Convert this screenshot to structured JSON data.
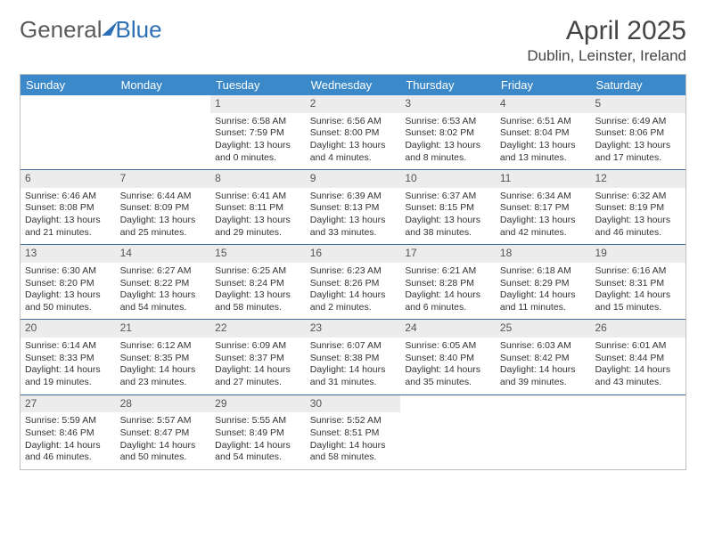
{
  "brand": {
    "part1": "General",
    "part2": "Blue"
  },
  "title": "April 2025",
  "location": "Dublin, Leinster, Ireland",
  "colors": {
    "header_bg": "#3b89c9",
    "header_text": "#ffffff",
    "row_divider": "#3b6a95",
    "daynum_bg": "#ececec",
    "border": "#bfbfbf",
    "text": "#333333",
    "brand_blue": "#2d6fb5"
  },
  "day_labels": [
    "Sunday",
    "Monday",
    "Tuesday",
    "Wednesday",
    "Thursday",
    "Friday",
    "Saturday"
  ],
  "weeks": [
    [
      {
        "empty": true
      },
      {
        "empty": true
      },
      {
        "day": "1",
        "sunrise": "Sunrise: 6:58 AM",
        "sunset": "Sunset: 7:59 PM",
        "daylight": "Daylight: 13 hours and 0 minutes."
      },
      {
        "day": "2",
        "sunrise": "Sunrise: 6:56 AM",
        "sunset": "Sunset: 8:00 PM",
        "daylight": "Daylight: 13 hours and 4 minutes."
      },
      {
        "day": "3",
        "sunrise": "Sunrise: 6:53 AM",
        "sunset": "Sunset: 8:02 PM",
        "daylight": "Daylight: 13 hours and 8 minutes."
      },
      {
        "day": "4",
        "sunrise": "Sunrise: 6:51 AM",
        "sunset": "Sunset: 8:04 PM",
        "daylight": "Daylight: 13 hours and 13 minutes."
      },
      {
        "day": "5",
        "sunrise": "Sunrise: 6:49 AM",
        "sunset": "Sunset: 8:06 PM",
        "daylight": "Daylight: 13 hours and 17 minutes."
      }
    ],
    [
      {
        "day": "6",
        "sunrise": "Sunrise: 6:46 AM",
        "sunset": "Sunset: 8:08 PM",
        "daylight": "Daylight: 13 hours and 21 minutes."
      },
      {
        "day": "7",
        "sunrise": "Sunrise: 6:44 AM",
        "sunset": "Sunset: 8:09 PM",
        "daylight": "Daylight: 13 hours and 25 minutes."
      },
      {
        "day": "8",
        "sunrise": "Sunrise: 6:41 AM",
        "sunset": "Sunset: 8:11 PM",
        "daylight": "Daylight: 13 hours and 29 minutes."
      },
      {
        "day": "9",
        "sunrise": "Sunrise: 6:39 AM",
        "sunset": "Sunset: 8:13 PM",
        "daylight": "Daylight: 13 hours and 33 minutes."
      },
      {
        "day": "10",
        "sunrise": "Sunrise: 6:37 AM",
        "sunset": "Sunset: 8:15 PM",
        "daylight": "Daylight: 13 hours and 38 minutes."
      },
      {
        "day": "11",
        "sunrise": "Sunrise: 6:34 AM",
        "sunset": "Sunset: 8:17 PM",
        "daylight": "Daylight: 13 hours and 42 minutes."
      },
      {
        "day": "12",
        "sunrise": "Sunrise: 6:32 AM",
        "sunset": "Sunset: 8:19 PM",
        "daylight": "Daylight: 13 hours and 46 minutes."
      }
    ],
    [
      {
        "day": "13",
        "sunrise": "Sunrise: 6:30 AM",
        "sunset": "Sunset: 8:20 PM",
        "daylight": "Daylight: 13 hours and 50 minutes."
      },
      {
        "day": "14",
        "sunrise": "Sunrise: 6:27 AM",
        "sunset": "Sunset: 8:22 PM",
        "daylight": "Daylight: 13 hours and 54 minutes."
      },
      {
        "day": "15",
        "sunrise": "Sunrise: 6:25 AM",
        "sunset": "Sunset: 8:24 PM",
        "daylight": "Daylight: 13 hours and 58 minutes."
      },
      {
        "day": "16",
        "sunrise": "Sunrise: 6:23 AM",
        "sunset": "Sunset: 8:26 PM",
        "daylight": "Daylight: 14 hours and 2 minutes."
      },
      {
        "day": "17",
        "sunrise": "Sunrise: 6:21 AM",
        "sunset": "Sunset: 8:28 PM",
        "daylight": "Daylight: 14 hours and 6 minutes."
      },
      {
        "day": "18",
        "sunrise": "Sunrise: 6:18 AM",
        "sunset": "Sunset: 8:29 PM",
        "daylight": "Daylight: 14 hours and 11 minutes."
      },
      {
        "day": "19",
        "sunrise": "Sunrise: 6:16 AM",
        "sunset": "Sunset: 8:31 PM",
        "daylight": "Daylight: 14 hours and 15 minutes."
      }
    ],
    [
      {
        "day": "20",
        "sunrise": "Sunrise: 6:14 AM",
        "sunset": "Sunset: 8:33 PM",
        "daylight": "Daylight: 14 hours and 19 minutes."
      },
      {
        "day": "21",
        "sunrise": "Sunrise: 6:12 AM",
        "sunset": "Sunset: 8:35 PM",
        "daylight": "Daylight: 14 hours and 23 minutes."
      },
      {
        "day": "22",
        "sunrise": "Sunrise: 6:09 AM",
        "sunset": "Sunset: 8:37 PM",
        "daylight": "Daylight: 14 hours and 27 minutes."
      },
      {
        "day": "23",
        "sunrise": "Sunrise: 6:07 AM",
        "sunset": "Sunset: 8:38 PM",
        "daylight": "Daylight: 14 hours and 31 minutes."
      },
      {
        "day": "24",
        "sunrise": "Sunrise: 6:05 AM",
        "sunset": "Sunset: 8:40 PM",
        "daylight": "Daylight: 14 hours and 35 minutes."
      },
      {
        "day": "25",
        "sunrise": "Sunrise: 6:03 AM",
        "sunset": "Sunset: 8:42 PM",
        "daylight": "Daylight: 14 hours and 39 minutes."
      },
      {
        "day": "26",
        "sunrise": "Sunrise: 6:01 AM",
        "sunset": "Sunset: 8:44 PM",
        "daylight": "Daylight: 14 hours and 43 minutes."
      }
    ],
    [
      {
        "day": "27",
        "sunrise": "Sunrise: 5:59 AM",
        "sunset": "Sunset: 8:46 PM",
        "daylight": "Daylight: 14 hours and 46 minutes."
      },
      {
        "day": "28",
        "sunrise": "Sunrise: 5:57 AM",
        "sunset": "Sunset: 8:47 PM",
        "daylight": "Daylight: 14 hours and 50 minutes."
      },
      {
        "day": "29",
        "sunrise": "Sunrise: 5:55 AM",
        "sunset": "Sunset: 8:49 PM",
        "daylight": "Daylight: 14 hours and 54 minutes."
      },
      {
        "day": "30",
        "sunrise": "Sunrise: 5:52 AM",
        "sunset": "Sunset: 8:51 PM",
        "daylight": "Daylight: 14 hours and 58 minutes."
      },
      {
        "empty": true
      },
      {
        "empty": true
      },
      {
        "empty": true
      }
    ]
  ]
}
